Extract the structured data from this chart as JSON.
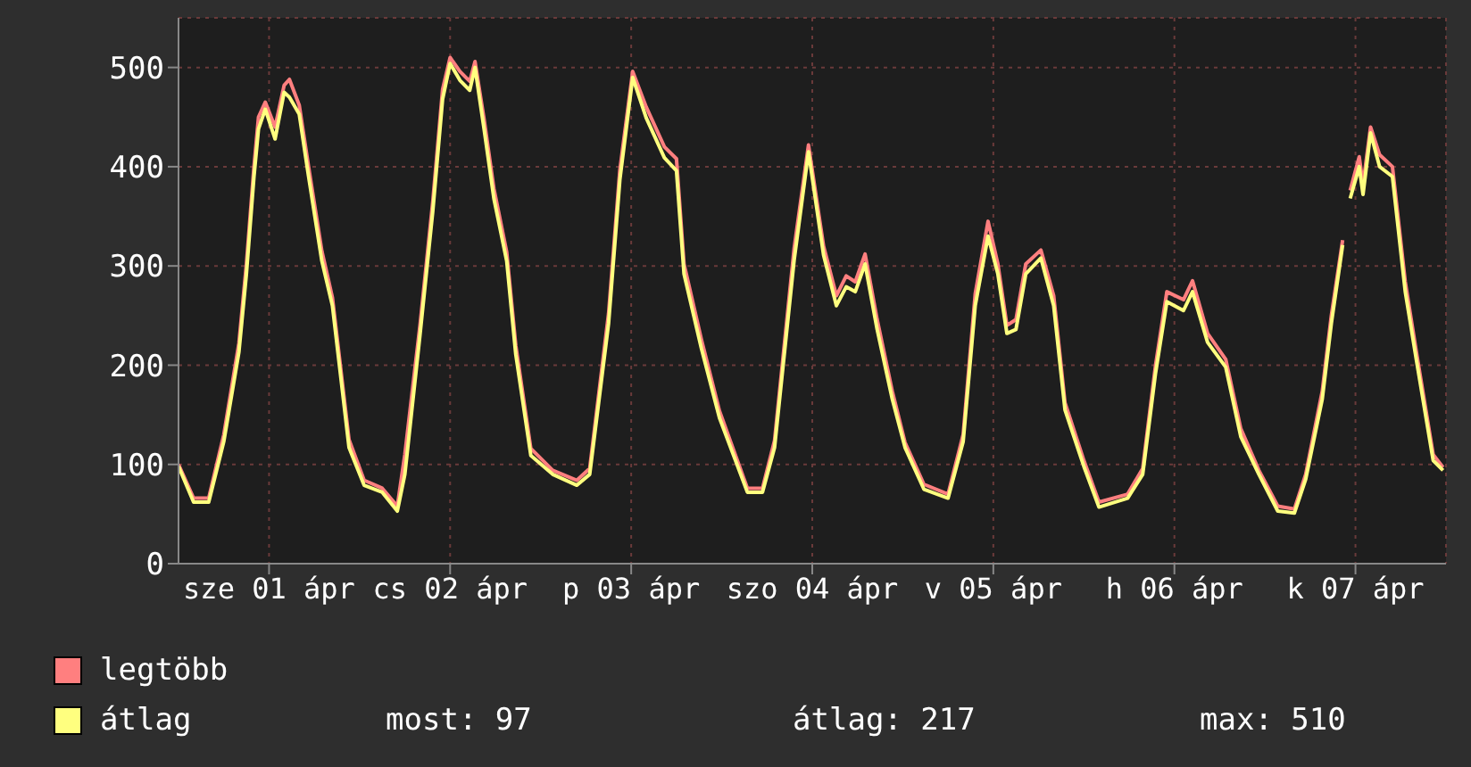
{
  "chart_data": {
    "type": "line",
    "x": [
      "--04-01T00:00",
      "--04-01T02:00",
      "--04-01T04:00",
      "--04-01T06:00",
      "--04-01T08:00",
      "--04-01T09:00",
      "--04-01T10:00",
      "--04-01T10:36",
      "--04-01T11:30",
      "--04-01T12:48",
      "--04-01T14:00",
      "--04-01T14:42",
      "--04-01T16:00",
      "--04-01T17:12",
      "--04-01T19:00",
      "--04-01T20:24",
      "--04-01T22:36",
      "--04-02T00:36",
      "--04-02T03:00",
      "--04-02T05:00",
      "--04-02T06:00",
      "--04-02T08:00",
      "--04-02T09:42",
      "--04-02T11:00",
      "--04-02T12:00",
      "--04-02T13:18",
      "--04-02T14:36",
      "--04-02T15:18",
      "--04-02T16:30",
      "--04-02T17:48",
      "--04-02T19:30",
      "--04-02T20:42",
      "--04-02T22:42",
      "--04-03T01:36",
      "--04-03T04:48",
      "--04-03T06:30",
      "--04-03T09:00",
      "--04-03T10:30",
      "--04-03T12:12",
      "--04-03T14:00",
      "--04-03T16:24",
      "--04-03T18:00",
      "--04-03T19:00",
      "--04-03T21:18",
      "--04-03T23:42",
      "--04-04T03:24",
      "--04-04T05:24",
      "--04-04T07:00",
      "--04-04T09:36",
      "--04-04T11:30",
      "--04-04T13:30",
      "--04-04T15:12",
      "--04-04T16:30",
      "--04-04T17:42",
      "--04-04T19:00",
      "--04-04T20:36",
      "--04-04T22:36",
      "--04-05T00:18",
      "--04-05T02:48",
      "--04-05T06:00",
      "--04-05T08:00",
      "--04-05T09:36",
      "--04-05T11:18",
      "--04-05T12:36",
      "--04-05T13:48",
      "--04-05T15:00",
      "--04-05T16:18",
      "--04-05T18:18",
      "--04-05T20:00",
      "--04-05T21:30",
      "--04-06T00:00",
      "--04-06T02:00",
      "--04-06T05:48",
      "--04-06T07:48",
      "--04-06T09:30",
      "--04-06T11:00",
      "--04-06T13:12",
      "--04-06T14:24",
      "--04-06T16:24",
      "--04-06T18:48",
      "--04-06T20:48",
      "--04-06T23:12",
      "--04-07T01:42",
      "--04-07T03:54",
      "--04-07T05:24",
      "--04-07T07:36",
      "--04-07T08:48",
      "--04-07T10:18",
      "--04-07T10:48",
      "--04-07T11:18",
      "--04-07T12:30",
      "--04-07T13:00",
      "--04-07T14:00",
      "--04-07T15:12",
      "--04-07T16:54",
      "--04-07T18:36",
      "--04-07T20:06",
      "--04-07T22:18",
      "--04-07T23:36"
    ],
    "series": [
      {
        "name": "legtöbb",
        "color": "#ff7f7f",
        "values": [
          100,
          66,
          66,
          130,
          222,
          302,
          400,
          450,
          465,
          440,
          482,
          488,
          462,
          402,
          315,
          268,
          125,
          84,
          76,
          58,
          110,
          240,
          365,
          478,
          510,
          496,
          486,
          506,
          448,
          378,
          314,
          220,
          116,
          94,
          84,
          96,
          252,
          397,
          496,
          460,
          420,
          408,
          302,
          226,
          154,
          76,
          76,
          124,
          318,
          422,
          320,
          270,
          290,
          284,
          312,
          246,
          174,
          122,
          80,
          70,
          130,
          272,
          345,
          302,
          240,
          246,
          302,
          316,
          270,
          162,
          104,
          62,
          70,
          96,
          200,
          274,
          266,
          285,
          232,
          206,
          136,
          94,
          58,
          55,
          90,
          174,
          250,
          326,
          null,
          376,
          410,
          382,
          440,
          412,
          400,
          284,
          212,
          110,
          97
        ]
      },
      {
        "name": "átlag",
        "color": "#ffff7f",
        "values": [
          98,
          62,
          62,
          123,
          213,
          292,
          390,
          438,
          458,
          428,
          475,
          470,
          453,
          392,
          305,
          260,
          117,
          79,
          72,
          53,
          90,
          230,
          355,
          468,
          504,
          487,
          477,
          500,
          438,
          368,
          305,
          211,
          109,
          90,
          79,
          90,
          242,
          387,
          490,
          449,
          409,
          396,
          292,
          217,
          147,
          72,
          72,
          117,
          306,
          415,
          311,
          260,
          279,
          274,
          302,
          236,
          166,
          117,
          75,
          66,
          123,
          260,
          330,
          292,
          232,
          236,
          292,
          308,
          260,
          155,
          98,
          57,
          66,
          90,
          192,
          264,
          255,
          274,
          223,
          198,
          128,
          90,
          53,
          51,
          85,
          166,
          242,
          321,
          null,
          368,
          400,
          372,
          434,
          400,
          390,
          274,
          204,
          104,
          94
        ]
      }
    ],
    "xlim": [
      "--04-01T00:00",
      "--04-08T00:00"
    ],
    "xticks": [
      {
        "value": "--04-01T12:00",
        "label": "sze 01 ápr"
      },
      {
        "value": "--04-02T12:00",
        "label": "cs 02 ápr"
      },
      {
        "value": "--04-03T12:00",
        "label": "p 03 ápr"
      },
      {
        "value": "--04-04T12:00",
        "label": "szo 04 ápr"
      },
      {
        "value": "--04-05T12:00",
        "label": "v 05 ápr"
      },
      {
        "value": "--04-06T12:00",
        "label": "h 06 ápr"
      },
      {
        "value": "--04-07T12:00",
        "label": "k 07 ápr"
      }
    ],
    "ylim": [
      0,
      550
    ],
    "yticks": [
      0,
      100,
      200,
      300,
      400,
      500
    ],
    "grid": true,
    "legend": "bottom",
    "marker": "none",
    "line_style": "solid",
    "annotations": [
      "most: 97",
      "átlag: 217",
      "max: 510"
    ]
  }
}
